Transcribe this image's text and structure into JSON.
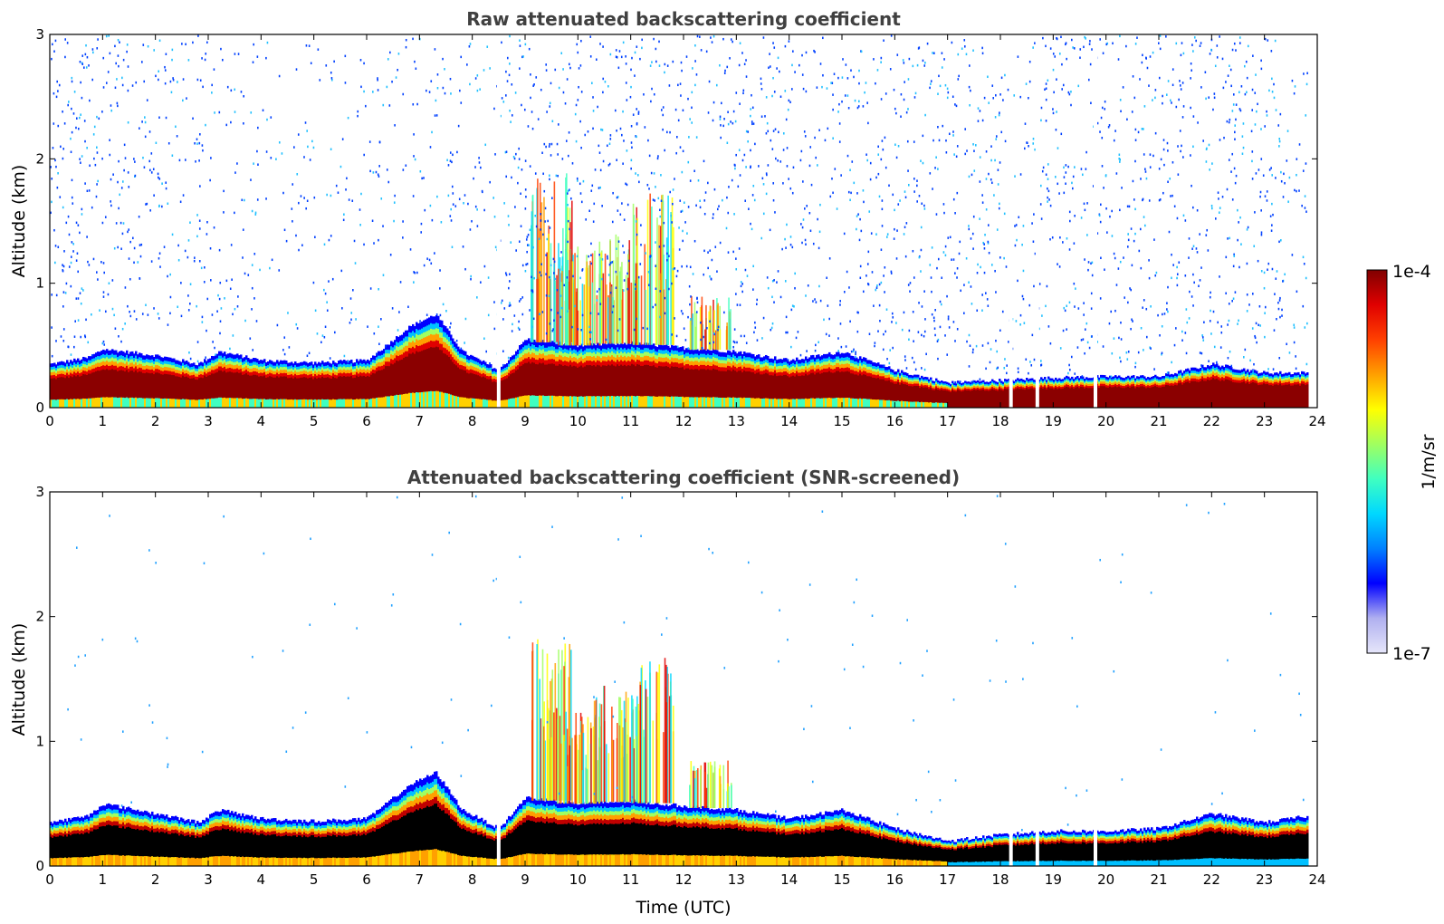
{
  "figure": {
    "colorbar": {
      "label": "1/m/sr",
      "max_label": "1e-4",
      "min_label": "1e-7",
      "scale": "log",
      "colormap": "jet",
      "colors": [
        "#e6e6fa",
        "#b0b0f0",
        "#0000ff",
        "#0080ff",
        "#00d8ff",
        "#40ffc0",
        "#a0ff60",
        "#ffff00",
        "#ffa000",
        "#ff4000",
        "#e00000",
        "#800000"
      ]
    }
  },
  "chart_data": [
    {
      "type": "heatmap",
      "title": "Raw attenuated backscattering coefficient",
      "xlabel": "",
      "ylabel": "Altitude (km)",
      "xlim": [
        0,
        24
      ],
      "ylim": [
        0,
        3
      ],
      "xticks": [
        "0",
        "1",
        "2",
        "3",
        "4",
        "5",
        "6",
        "7",
        "8",
        "9",
        "10",
        "11",
        "12",
        "13",
        "14",
        "15",
        "16",
        "17",
        "18",
        "19",
        "20",
        "21",
        "22",
        "23",
        "24"
      ],
      "yticks": [
        "0",
        "1",
        "2",
        "3"
      ],
      "boundary_layer_top_km": {
        "x": [
          0,
          0.7,
          1,
          2,
          2.8,
          3.2,
          4,
          5,
          6,
          6.8,
          7.3,
          7.8,
          8.5,
          9,
          10,
          11,
          12,
          13,
          14,
          15,
          16,
          17,
          18,
          19,
          20,
          21,
          22,
          23,
          23.8
        ],
        "y": [
          0.35,
          0.4,
          0.47,
          0.42,
          0.35,
          0.45,
          0.38,
          0.36,
          0.38,
          0.65,
          0.75,
          0.45,
          0.3,
          0.55,
          0.5,
          0.52,
          0.48,
          0.45,
          0.38,
          0.45,
          0.3,
          0.2,
          0.22,
          0.24,
          0.25,
          0.25,
          0.35,
          0.28,
          0.28
        ]
      },
      "cloud_plumes": [
        {
          "x": 9.5,
          "top_km": 1.9
        },
        {
          "x": 10.0,
          "top_km": 1.3
        },
        {
          "x": 10.7,
          "top_km": 1.4
        },
        {
          "x": 11.4,
          "top_km": 1.75
        },
        {
          "x": 12.5,
          "top_km": 0.9
        }
      ],
      "noise_extent": "0-3 km in most of the day; dense noise after 17 UTC",
      "missing_data_x": [
        8.5,
        18.2,
        18.7,
        19.8
      ]
    },
    {
      "type": "heatmap",
      "title": "Attenuated backscattering coefficient (SNR-screened)",
      "xlabel": "Time (UTC)",
      "ylabel": "Altitude (km)",
      "xlim": [
        0,
        24
      ],
      "ylim": [
        0,
        3
      ],
      "xticks": [
        "0",
        "1",
        "2",
        "3",
        "4",
        "5",
        "6",
        "7",
        "8",
        "9",
        "10",
        "11",
        "12",
        "13",
        "14",
        "15",
        "16",
        "17",
        "18",
        "19",
        "20",
        "21",
        "22",
        "23",
        "24"
      ],
      "yticks": [
        "0",
        "1",
        "2",
        "3"
      ],
      "boundary_layer_top_km": {
        "x": [
          0,
          0.7,
          1,
          2,
          2.8,
          3.2,
          4,
          5,
          6,
          6.8,
          7.3,
          7.8,
          8.5,
          9,
          10,
          11,
          12,
          13,
          14,
          15,
          16,
          17,
          18,
          19,
          20,
          21,
          22,
          23,
          23.8
        ],
        "y": [
          0.35,
          0.4,
          0.5,
          0.42,
          0.35,
          0.45,
          0.38,
          0.36,
          0.38,
          0.65,
          0.75,
          0.45,
          0.3,
          0.55,
          0.5,
          0.52,
          0.48,
          0.45,
          0.38,
          0.45,
          0.3,
          0.2,
          0.25,
          0.28,
          0.28,
          0.3,
          0.42,
          0.35,
          0.4
        ]
      },
      "cloud_plumes": [
        {
          "x": 9.5,
          "top_km": 1.85
        },
        {
          "x": 10.0,
          "top_km": 1.25
        },
        {
          "x": 10.7,
          "top_km": 1.45
        },
        {
          "x": 11.4,
          "top_km": 1.7
        },
        {
          "x": 12.5,
          "top_km": 0.85
        }
      ],
      "missing_data_x": [
        8.5,
        18.2,
        18.7,
        19.8
      ]
    }
  ]
}
